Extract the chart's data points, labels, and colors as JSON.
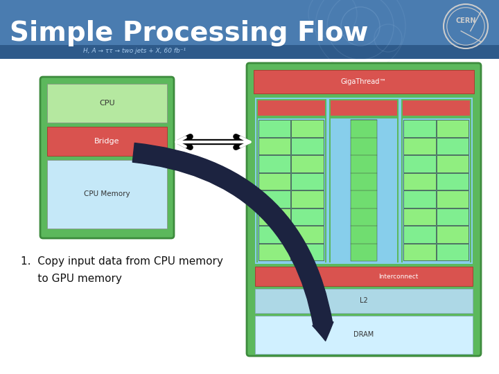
{
  "title": "Simple Processing Flow",
  "title_fontsize": 28,
  "title_color": "#ffffff",
  "header_color": "#4a7cb0",
  "header_dark": "#2e5a8a",
  "body_bg": "#ffffff",
  "step_text_line1": "1.  Copy input data from CPU memory",
  "step_text_line2": "     to GPU memory",
  "green_outer": "#5cb85c",
  "green_inner_light": "#a8e06a",
  "red_bar": "#d9534f",
  "blue_light": "#c5e8f8",
  "blue_medium": "#add8e6",
  "sky_blue": "#87ceeb",
  "cyan_cell": "#80ee80",
  "dark_arrow_color": "#1c2340",
  "white": "#ffffff",
  "black": "#000000",
  "gray_text": "#333333"
}
